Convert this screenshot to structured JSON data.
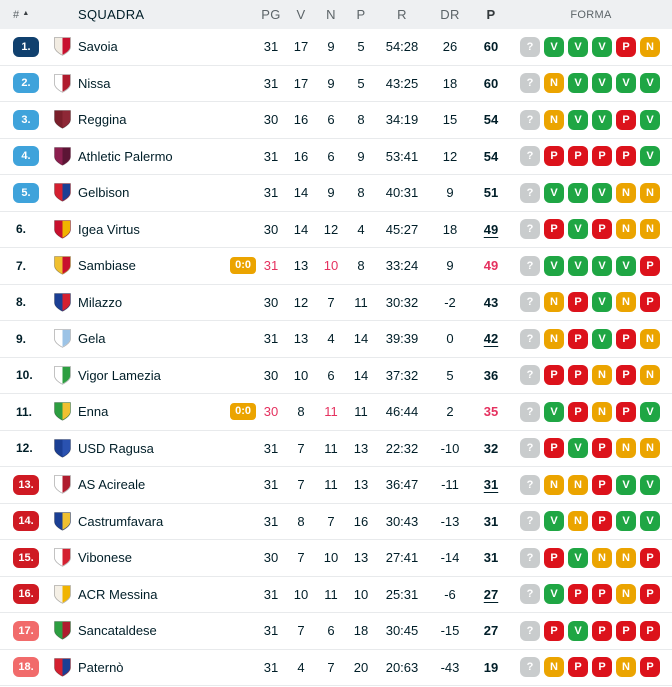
{
  "table": {
    "headers": {
      "rank": "#",
      "sort_icon": "▲",
      "team": "SQUADRA",
      "played": "PG",
      "wins": "V",
      "draws": "N",
      "losses": "P",
      "goals": "R",
      "diff": "DR",
      "points": "P",
      "form": "FORMA"
    },
    "rows": [
      {
        "rank": "1.",
        "rank_style": "dark-blue",
        "team": "Savoia",
        "logo_colors": [
          "#f2ece2",
          "#c8102e"
        ],
        "live": null,
        "pg": "31",
        "v": "17",
        "n": "9",
        "p": "5",
        "r": "54:28",
        "dr": "26",
        "pts": "60",
        "pts_underline": false,
        "live_row": false,
        "forma": [
          "?",
          "V",
          "V",
          "V",
          "P",
          "N"
        ]
      },
      {
        "rank": "2.",
        "rank_style": "light-blue",
        "team": "Nissa",
        "logo_colors": [
          "#ffffff",
          "#b01c2e"
        ],
        "live": null,
        "pg": "31",
        "v": "17",
        "n": "9",
        "p": "5",
        "r": "43:25",
        "dr": "18",
        "pts": "60",
        "pts_underline": false,
        "live_row": false,
        "forma": [
          "?",
          "N",
          "V",
          "V",
          "V",
          "V"
        ]
      },
      {
        "rank": "3.",
        "rank_style": "light-blue",
        "team": "Reggina",
        "logo_colors": [
          "#7a1f2b",
          "#8e2836"
        ],
        "live": null,
        "pg": "30",
        "v": "16",
        "n": "6",
        "p": "8",
        "r": "34:19",
        "dr": "15",
        "pts": "54",
        "pts_underline": false,
        "live_row": false,
        "forma": [
          "?",
          "N",
          "V",
          "V",
          "P",
          "V"
        ]
      },
      {
        "rank": "4.",
        "rank_style": "light-blue",
        "team": "Athletic Palermo",
        "logo_colors": [
          "#8c1f4f",
          "#5c1535"
        ],
        "live": null,
        "pg": "31",
        "v": "16",
        "n": "6",
        "p": "9",
        "r": "53:41",
        "dr": "12",
        "pts": "54",
        "pts_underline": false,
        "live_row": false,
        "forma": [
          "?",
          "P",
          "P",
          "P",
          "P",
          "V"
        ]
      },
      {
        "rank": "5.",
        "rank_style": "light-blue",
        "team": "Gelbison",
        "logo_colors": [
          "#d42030",
          "#1b3f94"
        ],
        "live": null,
        "pg": "31",
        "v": "14",
        "n": "9",
        "p": "8",
        "r": "40:31",
        "dr": "9",
        "pts": "51",
        "pts_underline": false,
        "live_row": false,
        "forma": [
          "?",
          "V",
          "V",
          "V",
          "N",
          "N"
        ]
      },
      {
        "rank": "6.",
        "rank_style": "none",
        "team": "Igea Virtus",
        "logo_colors": [
          "#c8102e",
          "#f0b400"
        ],
        "live": null,
        "pg": "30",
        "v": "14",
        "n": "12",
        "p": "4",
        "r": "45:27",
        "dr": "18",
        "pts": "49",
        "pts_underline": true,
        "live_row": false,
        "forma": [
          "?",
          "P",
          "V",
          "P",
          "N",
          "N"
        ]
      },
      {
        "rank": "7.",
        "rank_style": "none",
        "team": "Sambiase",
        "logo_colors": [
          "#f0c030",
          "#c8102e"
        ],
        "live": "0:0",
        "pg": "31",
        "v": "13",
        "n": "10",
        "p": "8",
        "r": "33:24",
        "dr": "9",
        "pts": "49",
        "pts_underline": false,
        "live_row": true,
        "forma": [
          "?",
          "V",
          "V",
          "V",
          "V",
          "P"
        ]
      },
      {
        "rank": "8.",
        "rank_style": "none",
        "team": "Milazzo",
        "logo_colors": [
          "#1b3f94",
          "#d42030"
        ],
        "live": null,
        "pg": "30",
        "v": "12",
        "n": "7",
        "p": "11",
        "r": "30:32",
        "dr": "-2",
        "pts": "43",
        "pts_underline": false,
        "live_row": false,
        "forma": [
          "?",
          "N",
          "P",
          "V",
          "N",
          "P"
        ]
      },
      {
        "rank": "9.",
        "rank_style": "none",
        "team": "Gela",
        "logo_colors": [
          "#ffffff",
          "#9cc3e6"
        ],
        "live": null,
        "pg": "31",
        "v": "13",
        "n": "4",
        "p": "14",
        "r": "39:39",
        "dr": "0",
        "pts": "42",
        "pts_underline": true,
        "live_row": false,
        "forma": [
          "?",
          "N",
          "P",
          "V",
          "P",
          "N"
        ]
      },
      {
        "rank": "10.",
        "rank_style": "none",
        "team": "Vigor Lamezia",
        "logo_colors": [
          "#ffffff",
          "#2d9e41"
        ],
        "live": null,
        "pg": "30",
        "v": "10",
        "n": "6",
        "p": "14",
        "r": "37:32",
        "dr": "5",
        "pts": "36",
        "pts_underline": false,
        "live_row": false,
        "forma": [
          "?",
          "P",
          "P",
          "N",
          "P",
          "N"
        ]
      },
      {
        "rank": "11.",
        "rank_style": "none",
        "team": "Enna",
        "logo_colors": [
          "#2d9e41",
          "#f0c030"
        ],
        "live": "0:0",
        "pg": "30",
        "v": "8",
        "n": "11",
        "p": "11",
        "r": "46:44",
        "dr": "2",
        "pts": "35",
        "pts_underline": false,
        "live_row": true,
        "forma": [
          "?",
          "V",
          "P",
          "N",
          "P",
          "V"
        ]
      },
      {
        "rank": "12.",
        "rank_style": "none",
        "team": "USD Ragusa",
        "logo_colors": [
          "#1b3f94",
          "#2a52b0"
        ],
        "live": null,
        "pg": "31",
        "v": "7",
        "n": "11",
        "p": "13",
        "r": "22:32",
        "dr": "-10",
        "pts": "32",
        "pts_underline": false,
        "live_row": false,
        "forma": [
          "?",
          "P",
          "V",
          "P",
          "N",
          "N"
        ]
      },
      {
        "rank": "13.",
        "rank_style": "dark-red",
        "team": "AS Acireale",
        "logo_colors": [
          "#ffffff",
          "#b01c2e"
        ],
        "live": null,
        "pg": "31",
        "v": "7",
        "n": "11",
        "p": "13",
        "r": "36:47",
        "dr": "-11",
        "pts": "31",
        "pts_underline": true,
        "live_row": false,
        "forma": [
          "?",
          "N",
          "N",
          "P",
          "V",
          "V"
        ]
      },
      {
        "rank": "14.",
        "rank_style": "dark-red",
        "team": "Castrumfavara",
        "logo_colors": [
          "#1b3f94",
          "#f0c030"
        ],
        "live": null,
        "pg": "31",
        "v": "8",
        "n": "7",
        "p": "16",
        "r": "30:43",
        "dr": "-13",
        "pts": "31",
        "pts_underline": false,
        "live_row": false,
        "forma": [
          "?",
          "V",
          "N",
          "P",
          "V",
          "V"
        ]
      },
      {
        "rank": "15.",
        "rank_style": "dark-red",
        "team": "Vibonese",
        "logo_colors": [
          "#ffffff",
          "#d42030"
        ],
        "live": null,
        "pg": "30",
        "v": "7",
        "n": "10",
        "p": "13",
        "r": "27:41",
        "dr": "-14",
        "pts": "31",
        "pts_underline": false,
        "live_row": false,
        "forma": [
          "?",
          "P",
          "V",
          "N",
          "N",
          "P"
        ]
      },
      {
        "rank": "16.",
        "rank_style": "dark-red",
        "team": "ACR Messina",
        "logo_colors": [
          "#f5f0e6",
          "#f0b400"
        ],
        "live": null,
        "pg": "31",
        "v": "10",
        "n": "11",
        "p": "10",
        "r": "25:31",
        "dr": "-6",
        "pts": "27",
        "pts_underline": true,
        "live_row": false,
        "forma": [
          "?",
          "V",
          "P",
          "P",
          "N",
          "P"
        ]
      },
      {
        "rank": "17.",
        "rank_style": "light-red",
        "team": "Sancataldese",
        "logo_colors": [
          "#2d9e41",
          "#b01c2e"
        ],
        "live": null,
        "pg": "31",
        "v": "7",
        "n": "6",
        "p": "18",
        "r": "30:45",
        "dr": "-15",
        "pts": "27",
        "pts_underline": false,
        "live_row": false,
        "forma": [
          "?",
          "P",
          "V",
          "P",
          "P",
          "P"
        ]
      },
      {
        "rank": "18.",
        "rank_style": "light-red",
        "team": "Paternò",
        "logo_colors": [
          "#d42030",
          "#1b3f94"
        ],
        "live": null,
        "pg": "31",
        "v": "4",
        "n": "7",
        "p": "20",
        "r": "20:63",
        "dr": "-43",
        "pts": "19",
        "pts_underline": false,
        "live_row": false,
        "forma": [
          "?",
          "N",
          "P",
          "P",
          "N",
          "P"
        ]
      }
    ]
  },
  "colors": {
    "rank_badges": {
      "dark-blue": "#10406e",
      "light-blue": "#3fa3db",
      "dark-red": "#cf1a23",
      "light-red": "#f16b6b"
    },
    "form": {
      "V": "#1fa644",
      "N": "#eba400",
      "P": "#dc121b",
      "?": "#c9cccd"
    },
    "live_badge_bg": "#eba400",
    "live_text": "#e5315f",
    "text": "#001e28",
    "header_bg": "#eef0f2"
  }
}
